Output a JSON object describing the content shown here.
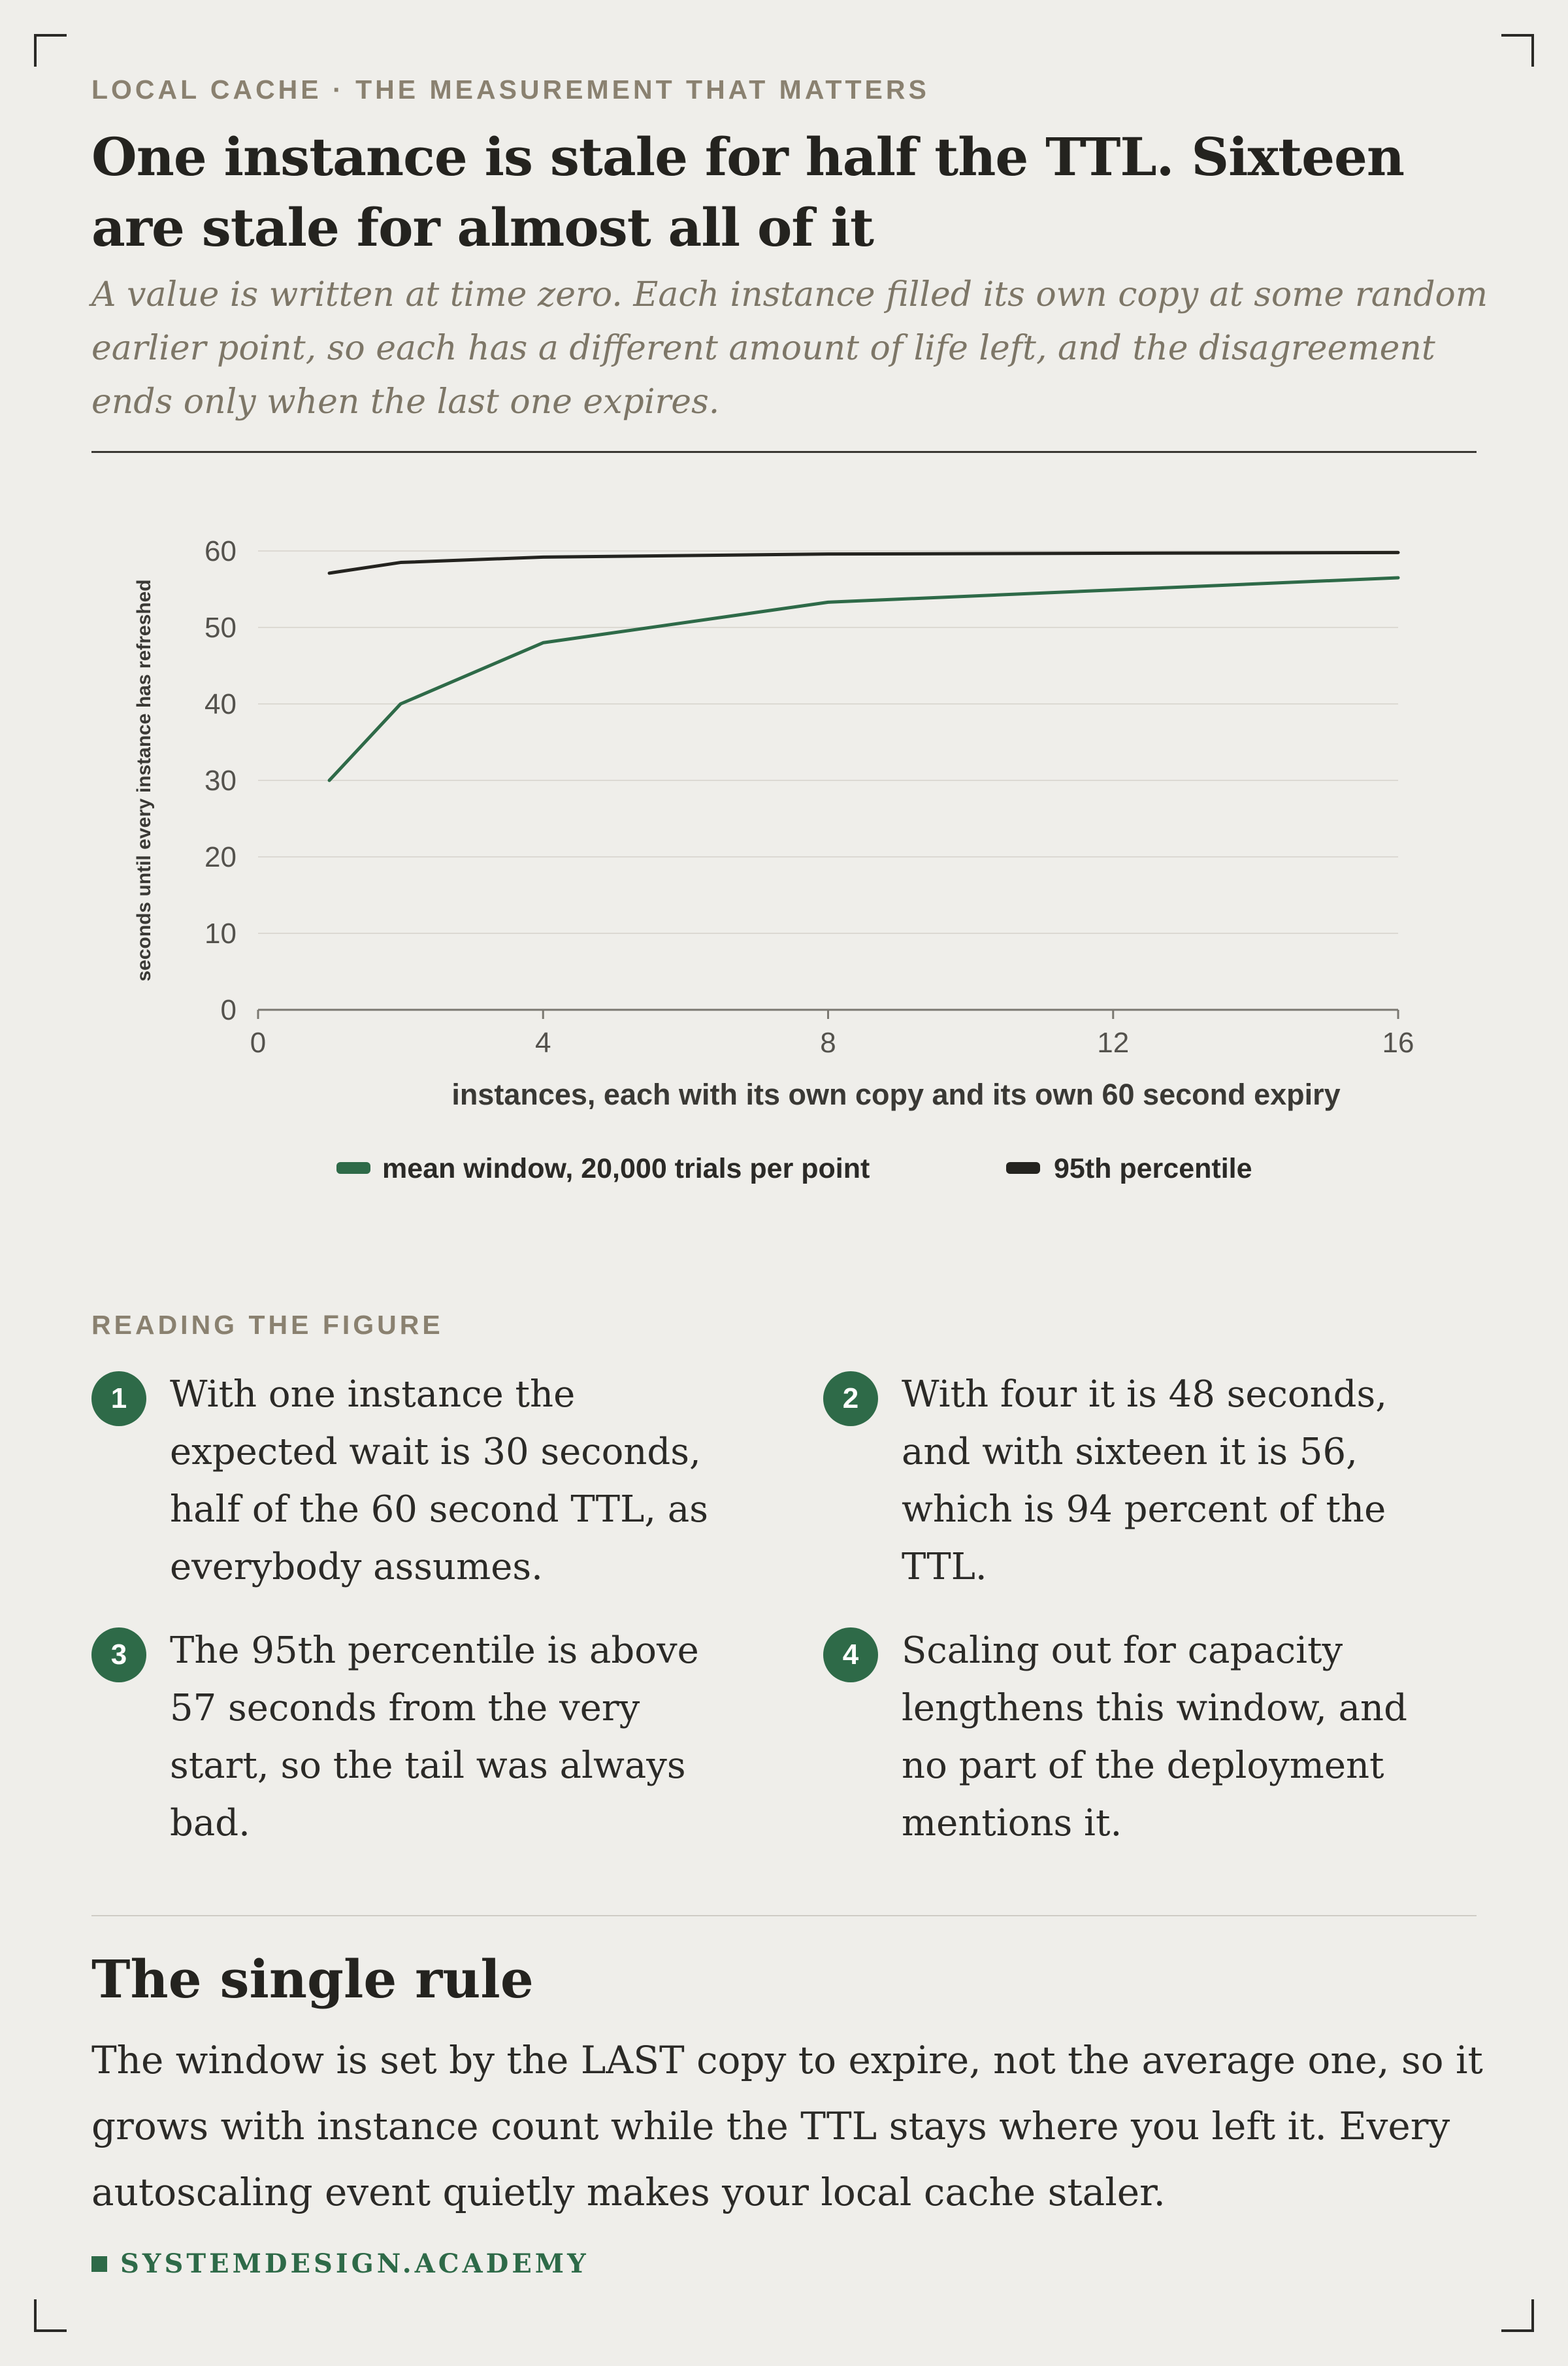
{
  "header": {
    "eyebrow": "LOCAL CACHE · THE MEASUREMENT THAT MATTERS",
    "headline": "One instance is stale for half the TTL. Sixteen are stale for almost all of it",
    "dek": "A value is written at time zero. Each instance filled its own copy at some random earlier point, so each has a different amount of life left, and the disagreement ends only when the last one expires."
  },
  "chart_data": {
    "type": "line",
    "title": "",
    "xlabel": "instances, each with its own copy and its own 60 second expiry",
    "ylabel": "seconds until every instance has refreshed",
    "xlim": [
      0,
      16
    ],
    "ylim": [
      0,
      60
    ],
    "x_ticks": [
      "0",
      "4",
      "8",
      "12",
      "16"
    ],
    "y_ticks": [
      "0",
      "10",
      "20",
      "30",
      "40",
      "50",
      "60"
    ],
    "grid": true,
    "legend_position": "bottom",
    "series": [
      {
        "name": "mean window, 20,000 trials per point",
        "color": "#2e6a48",
        "x": [
          1,
          2,
          4,
          8,
          16
        ],
        "values": [
          30,
          40,
          48,
          53.3,
          56.5
        ]
      },
      {
        "name": "95th percentile",
        "color": "#24231f",
        "x": [
          1,
          2,
          4,
          8,
          16
        ],
        "values": [
          57.1,
          58.5,
          59.2,
          59.6,
          59.8
        ]
      }
    ]
  },
  "reading": {
    "label": "READING THE FIGURE",
    "notes": [
      {
        "num": "1",
        "text": "With one instance the expected wait is 30 seconds, half of the 60 second TTL, as everybody assumes."
      },
      {
        "num": "2",
        "text": "With four it is 48 seconds, and with sixteen it is 56, which is 94 percent of the TTL."
      },
      {
        "num": "3",
        "text": "The 95th percentile is above 57 seconds from the very start, so the tail was always bad."
      },
      {
        "num": "4",
        "text": "Scaling out for capacity lengthens this window, and no part of the deployment mentions it."
      }
    ]
  },
  "rule": {
    "title": "The single rule",
    "body": "The window is set by the LAST copy to expire, not the average one, so it grows with instance count while the TTL stays where you left it. Every autoscaling event quietly makes your local cache staler."
  },
  "footer": {
    "brand": "SYSTEMDESIGN.ACADEMY"
  }
}
